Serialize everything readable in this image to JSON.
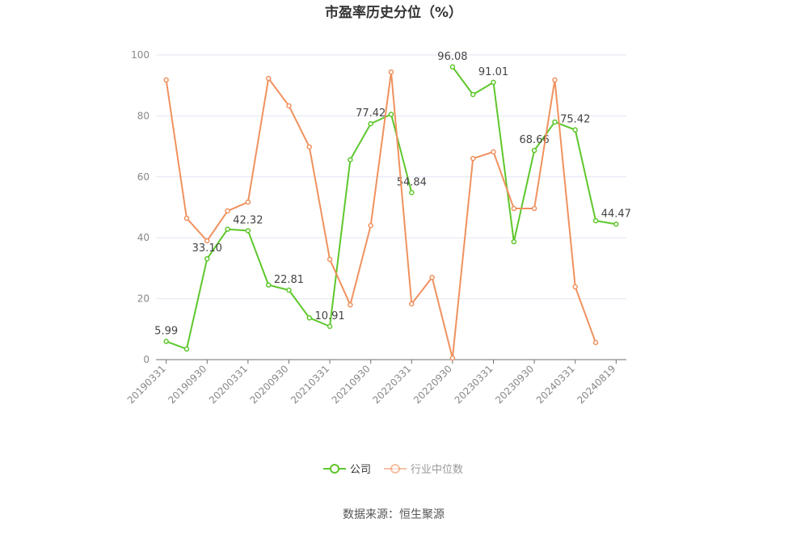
{
  "chart_data": {
    "type": "line",
    "title": "市盈率历史分位（%）",
    "categories": [
      "20190331",
      null,
      "20190930",
      null,
      "20200331",
      null,
      "20200930",
      null,
      "20210331",
      null,
      "20210930",
      null,
      "20220331",
      null,
      "20220930",
      null,
      "20230331",
      null,
      "20230930",
      null,
      "20240331",
      null,
      "20240819"
    ],
    "series": [
      {
        "name": "公司",
        "color": "#5ec72c",
        "values": [
          5.99,
          3.5,
          33.1,
          42.8,
          42.32,
          24.5,
          22.81,
          13.7,
          10.91,
          65.6,
          77.42,
          80.5,
          54.84,
          null,
          96.08,
          87,
          91.01,
          38.7,
          68.66,
          78,
          75.42,
          45.6,
          44.47
        ],
        "value_labels": [
          "5.99",
          null,
          "33.10",
          null,
          "42.32",
          null,
          "22.81",
          null,
          "10.91",
          null,
          "77.42",
          null,
          "54.84",
          null,
          "96.08",
          null,
          "91.01",
          null,
          "68.66",
          null,
          "75.42",
          null,
          "44.47"
        ]
      },
      {
        "name": "行业中位数",
        "color": "#f0915f",
        "values": [
          91.8,
          46.4,
          39,
          48.8,
          51.7,
          92.3,
          83.3,
          69.8,
          32.9,
          18,
          44,
          94.4,
          18.3,
          27,
          0.5,
          66,
          68.2,
          49.6,
          49.6,
          91.8,
          23.9,
          5.6,
          null
        ]
      }
    ],
    "ylim": [
      0,
      100
    ],
    "yticks": [
      0,
      20,
      40,
      60,
      80,
      100
    ],
    "grid": true,
    "source": "数据来源：恒生聚源"
  }
}
